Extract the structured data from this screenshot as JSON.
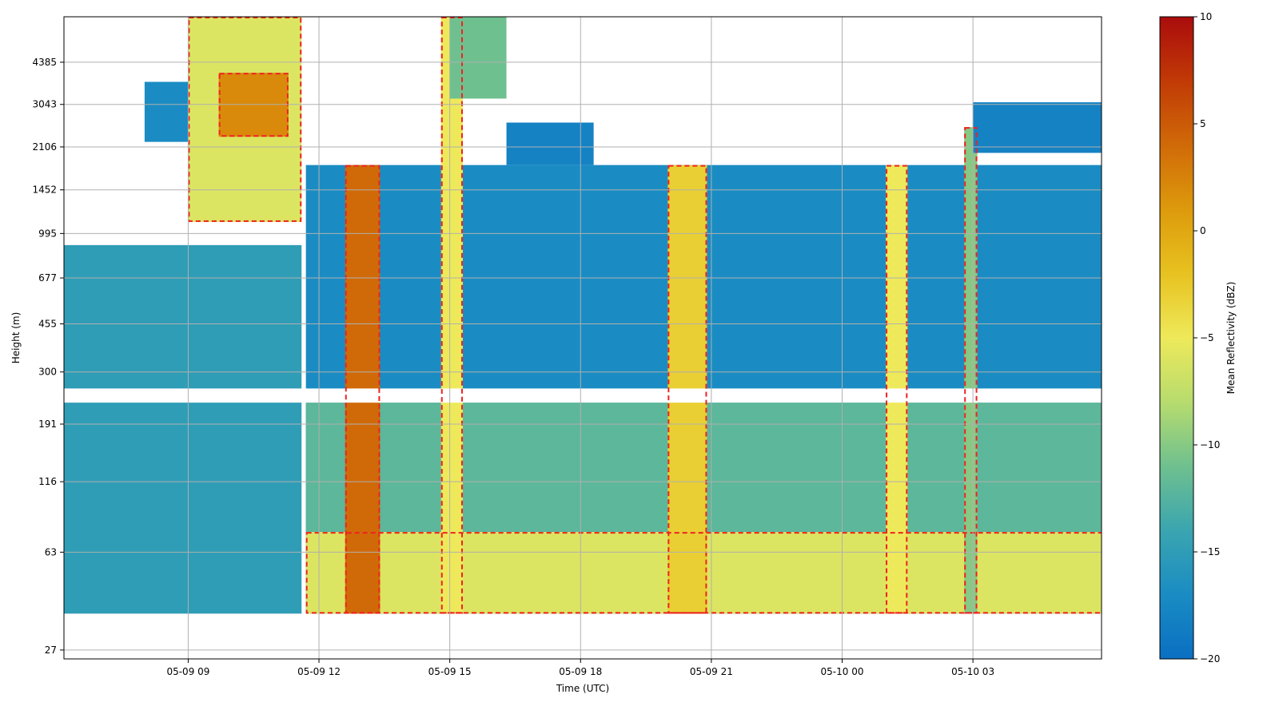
{
  "chart_data": {
    "type": "heatmap",
    "title": "",
    "xlabel": "Time (UTC)",
    "ylabel": "Height (m)",
    "x_ticks": [
      "05-09 09",
      "05-09 12",
      "05-09 15",
      "05-09 18",
      "05-09 21",
      "05-10 00",
      "05-10 03"
    ],
    "x_tick_hours": [
      9,
      12,
      15,
      18,
      21,
      24,
      27
    ],
    "x_range_hours": [
      6.15,
      29.95
    ],
    "y_ticks": [
      "27",
      "63",
      "116",
      "191",
      "300",
      "455",
      "677",
      "995",
      "1452",
      "2106",
      "3043",
      "4385"
    ],
    "y_tick_values": [
      27,
      63,
      116,
      191,
      300,
      455,
      677,
      995,
      1452,
      2106,
      3043,
      4385
    ],
    "y_scale": "log",
    "y_range": [
      25,
      6500
    ],
    "grid": true,
    "colorbar": {
      "label": "Mean Reflectivity (dBZ)",
      "ticks": [
        "10",
        "5",
        "0",
        "−5",
        "−10",
        "−15",
        "−20"
      ],
      "tick_values": [
        10,
        5,
        0,
        -5,
        -10,
        -15,
        -20
      ],
      "range": [
        -20,
        10
      ],
      "colormap": [
        "#0a6fc2",
        "#1a8cc3",
        "#3aa5b0",
        "#6fc08f",
        "#b7dc6e",
        "#eee95a",
        "#e7c220",
        "#dd9a0c",
        "#d06a08",
        "#c13a06",
        "#aa0c0c"
      ]
    },
    "contour": {
      "color": "#ee2222",
      "style": "dashed",
      "level_dbz": -10
    },
    "gap_band_m": [
      230,
      260
    ],
    "series": [
      {
        "x_range_hours": [
          6.15,
          11.6
        ],
        "y_range_m": [
          37,
          900
        ],
        "dbz": -15
      },
      {
        "x_range_hours": [
          8.0,
          9.8
        ],
        "y_range_m": [
          2200,
          3700
        ],
        "dbz": -17
      },
      {
        "x_range_hours": [
          9.0,
          11.6
        ],
        "y_range_m": [
          1100,
          6500
        ],
        "dbz": -6
      },
      {
        "x_range_hours": [
          9.7,
          11.3
        ],
        "y_range_m": [
          2300,
          4000
        ],
        "dbz": 2
      },
      {
        "x_range_hours": [
          11.7,
          30.0
        ],
        "y_range_m": [
          37,
          1800
        ],
        "dbz": -17
      },
      {
        "x_range_hours": [
          11.7,
          30.0
        ],
        "y_range_m": [
          37,
          230
        ],
        "dbz": -12
      },
      {
        "x_range_hours": [
          11.7,
          30.0
        ],
        "y_range_m": [
          37,
          75
        ],
        "dbz": -6
      },
      {
        "x_range_hours": [
          12.6,
          13.4
        ],
        "y_range_m": [
          37,
          1800
        ],
        "dbz": 4
      },
      {
        "x_range_hours": [
          14.8,
          15.3
        ],
        "y_range_m": [
          37,
          6500
        ],
        "dbz": -5
      },
      {
        "x_range_hours": [
          15.0,
          16.3
        ],
        "y_range_m": [
          3200,
          6500
        ],
        "dbz": -11
      },
      {
        "x_range_hours": [
          16.3,
          18.3
        ],
        "y_range_m": [
          1800,
          2600
        ],
        "dbz": -18
      },
      {
        "x_range_hours": [
          20.0,
          20.9
        ],
        "y_range_m": [
          37,
          1800
        ],
        "dbz": -3
      },
      {
        "x_range_hours": [
          25.0,
          25.5
        ],
        "y_range_m": [
          37,
          1800
        ],
        "dbz": -5
      },
      {
        "x_range_hours": [
          26.8,
          27.1
        ],
        "y_range_m": [
          37,
          2500
        ],
        "dbz": -10
      },
      {
        "x_range_hours": [
          27.0,
          30.0
        ],
        "y_range_m": [
          2000,
          3100
        ],
        "dbz": -18
      }
    ]
  }
}
